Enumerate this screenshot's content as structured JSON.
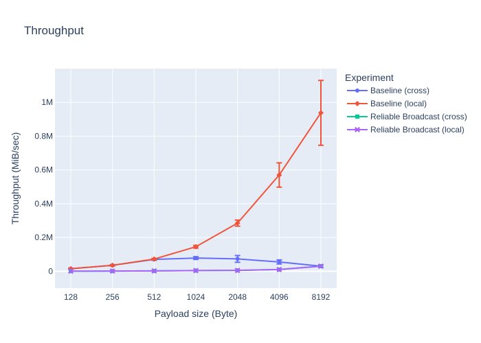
{
  "chart_data": {
    "type": "line",
    "title": "Throughput",
    "xlabel": "Payload size (Byte)",
    "ylabel": "Throughput (MiB/sec)",
    "x_scale": "log2",
    "x": [
      128,
      256,
      512,
      1024,
      2048,
      4096,
      8192
    ],
    "x_tick_labels": [
      "128",
      "256",
      "512",
      "1024",
      "2048",
      "4096",
      "8192"
    ],
    "yticks": [
      0,
      200000,
      400000,
      600000,
      800000,
      1000000
    ],
    "y_tick_labels": [
      "0",
      "0.2M",
      "0.4M",
      "0.6M",
      "0.8M",
      "1M"
    ],
    "ylim": [
      -100000,
      1200000
    ],
    "grid": true,
    "legend_title": "Experiment",
    "legend_position": "right",
    "series": [
      {
        "name": "Baseline (cross)",
        "color": "#636efa",
        "marker": "circle",
        "values": [
          15000,
          35000,
          70000,
          78000,
          73000,
          55000,
          30000
        ],
        "error": [
          3000,
          4000,
          5000,
          8000,
          20000,
          12000,
          8000
        ]
      },
      {
        "name": "Baseline (local)",
        "color": "#ef553b",
        "marker": "diamond",
        "values": [
          15000,
          35000,
          72000,
          145000,
          285000,
          570000,
          938000
        ],
        "error": [
          2000,
          3000,
          4000,
          8000,
          18000,
          72000,
          192000
        ]
      },
      {
        "name": "Reliable Broadcast (cross)",
        "color": "#00cc96",
        "marker": "square",
        "values": [
          500,
          1000,
          2000,
          4000,
          5000,
          10000,
          30000
        ],
        "error": [
          0,
          0,
          0,
          0,
          0,
          0,
          0
        ]
      },
      {
        "name": "Reliable Broadcast (local)",
        "color": "#ab63fa",
        "marker": "x",
        "values": [
          500,
          1000,
          2000,
          4000,
          5000,
          10000,
          30000
        ],
        "error": [
          0,
          0,
          0,
          0,
          0,
          0,
          0
        ]
      }
    ]
  }
}
